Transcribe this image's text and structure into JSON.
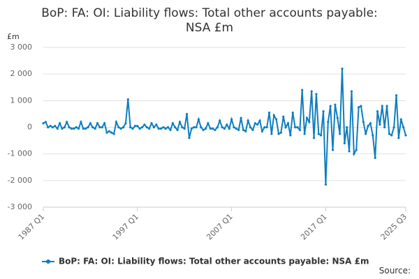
{
  "chart_data": {
    "type": "line",
    "title": "BoP: FA: OI: Liability flows: Total other accounts payable:",
    "title_line2": "NSA £m",
    "y_unit": "£m",
    "source": "Source:",
    "categories": [
      "1987 Q1",
      null,
      null,
      null,
      null,
      null,
      null,
      null,
      null,
      null,
      null,
      null,
      null,
      null,
      null,
      null,
      null,
      null,
      null,
      null,
      null,
      null,
      null,
      null,
      null,
      null,
      null,
      null,
      null,
      null,
      null,
      null,
      null,
      null,
      null,
      null,
      null,
      null,
      null,
      null,
      "1997 Q1",
      null,
      null,
      null,
      null,
      null,
      null,
      null,
      null,
      null,
      null,
      null,
      null,
      null,
      null,
      null,
      null,
      null,
      null,
      null,
      null,
      null,
      null,
      null,
      null,
      null,
      null,
      null,
      null,
      null,
      null,
      null,
      null,
      null,
      null,
      null,
      null,
      null,
      null,
      null,
      "2007 Q1",
      null,
      null,
      null,
      null,
      null,
      null,
      null,
      null,
      null,
      null,
      null,
      null,
      null,
      null,
      null,
      null,
      null,
      null,
      null,
      null,
      null,
      null,
      null,
      null,
      null,
      null,
      null,
      null,
      null,
      null,
      null,
      null,
      null,
      null,
      null,
      null,
      null,
      null,
      null,
      "2017 Q1",
      null,
      null,
      null,
      null,
      null,
      null,
      null,
      null,
      null,
      null,
      null,
      null,
      null,
      null,
      null,
      null,
      null,
      null,
      null,
      null,
      null,
      null,
      null,
      null,
      null,
      null,
      null,
      null,
      null,
      null,
      null,
      null,
      null,
      "2025 Q3"
    ],
    "series": [
      {
        "name": "BoP: FA: OI: Liability flows: Total other accounts payable: NSA £m",
        "color": "#0e7ebf",
        "values": [
          150,
          200,
          0,
          50,
          0,
          50,
          -50,
          150,
          -50,
          0,
          200,
          0,
          -50,
          -50,
          0,
          -50,
          200,
          -50,
          -50,
          0,
          150,
          0,
          -50,
          150,
          0,
          0,
          150,
          -200,
          -150,
          -200,
          -250,
          200,
          0,
          -50,
          0,
          150,
          1050,
          0,
          -50,
          50,
          50,
          -50,
          0,
          100,
          0,
          -50,
          150,
          0,
          100,
          -50,
          -50,
          0,
          -50,
          0,
          -100,
          150,
          0,
          -100,
          200,
          0,
          -50,
          500,
          -400,
          -50,
          0,
          0,
          300,
          0,
          -100,
          -50,
          150,
          -50,
          -50,
          -100,
          0,
          250,
          0,
          -50,
          100,
          -50,
          300,
          0,
          -50,
          -100,
          350,
          -100,
          -150,
          250,
          0,
          -100,
          150,
          100,
          250,
          -150,
          0,
          0,
          550,
          -250,
          450,
          300,
          -250,
          -200,
          400,
          0,
          150,
          -300,
          550,
          0,
          0,
          -100,
          1400,
          -250,
          350,
          200,
          1350,
          -400,
          1250,
          -250,
          -300,
          600,
          -2150,
          200,
          800,
          -850,
          850,
          350,
          -250,
          2200,
          -600,
          0,
          -900,
          1350,
          -1000,
          -850,
          750,
          800,
          200,
          -250,
          50,
          150,
          -300,
          -1150,
          600,
          100,
          800,
          0,
          800,
          -250,
          -300,
          0,
          1200,
          -400,
          300,
          0,
          -300
        ]
      }
    ],
    "ylim": [
      -3000,
      3000
    ],
    "yticks": [
      {
        "value": -3000,
        "label": "-3 000"
      },
      {
        "value": -2000,
        "label": "-2 000"
      },
      {
        "value": -1000,
        "label": "-1 000"
      },
      0,
      {
        "value": 1000,
        "label": "1 000"
      },
      {
        "value": 2000,
        "label": "2 000"
      },
      {
        "value": 3000,
        "label": "3 000"
      }
    ],
    "grid": true
  }
}
